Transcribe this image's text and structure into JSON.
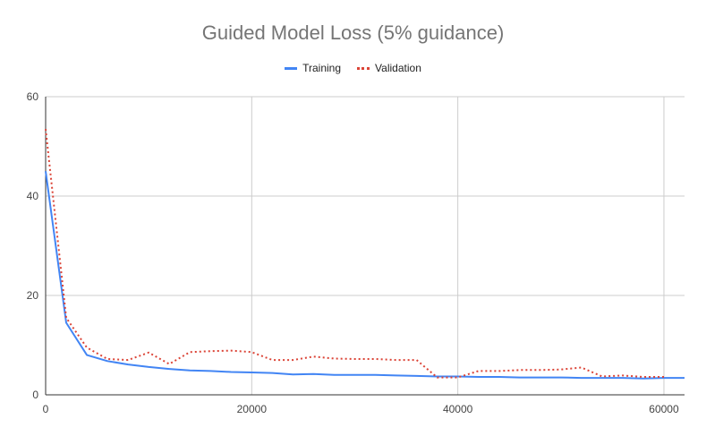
{
  "chart_data": {
    "type": "line",
    "title": "Guided Model Loss (5% guidance)",
    "xlabel": "",
    "ylabel": "",
    "xlim": [
      0,
      62000
    ],
    "ylim": [
      0,
      60
    ],
    "x_ticks": [
      "0",
      "20000",
      "40000",
      "60000"
    ],
    "y_ticks": [
      "0",
      "20",
      "40",
      "60"
    ],
    "grid": true,
    "legend": "top-center",
    "series": [
      {
        "name": "Training",
        "color": "#4285f4",
        "style": "solid",
        "x": [
          0,
          2000,
          4000,
          6000,
          8000,
          10000,
          12000,
          14000,
          16000,
          18000,
          20000,
          22000,
          24000,
          26000,
          28000,
          30000,
          32000,
          34000,
          36000,
          38000,
          40000,
          42000,
          44000,
          46000,
          48000,
          50000,
          52000,
          54000,
          56000,
          58000,
          60000,
          62000
        ],
        "y": [
          45,
          14.5,
          8,
          6.8,
          6.1,
          5.6,
          5.2,
          4.9,
          4.8,
          4.6,
          4.5,
          4.4,
          4.1,
          4.2,
          4.0,
          4.0,
          4.0,
          3.9,
          3.8,
          3.7,
          3.7,
          3.6,
          3.6,
          3.5,
          3.5,
          3.5,
          3.4,
          3.4,
          3.4,
          3.3,
          3.4,
          3.4
        ]
      },
      {
        "name": "Validation",
        "color": "#db4437",
        "style": "dotted",
        "x": [
          0,
          2000,
          4000,
          6000,
          8000,
          10000,
          12000,
          14000,
          16000,
          18000,
          20000,
          22000,
          24000,
          26000,
          28000,
          30000,
          32000,
          34000,
          36000,
          38000,
          40000,
          42000,
          44000,
          46000,
          48000,
          50000,
          52000,
          54000,
          56000,
          58000,
          60000
        ],
        "y": [
          53.5,
          15.5,
          9.5,
          7.2,
          7.0,
          8.5,
          6.2,
          8.6,
          8.8,
          8.9,
          8.6,
          7.0,
          7.0,
          7.7,
          7.3,
          7.2,
          7.2,
          7.0,
          7.0,
          3.5,
          3.5,
          4.8,
          4.8,
          5.0,
          5.0,
          5.1,
          5.5,
          3.7,
          3.9,
          3.6,
          3.6
        ]
      }
    ]
  }
}
